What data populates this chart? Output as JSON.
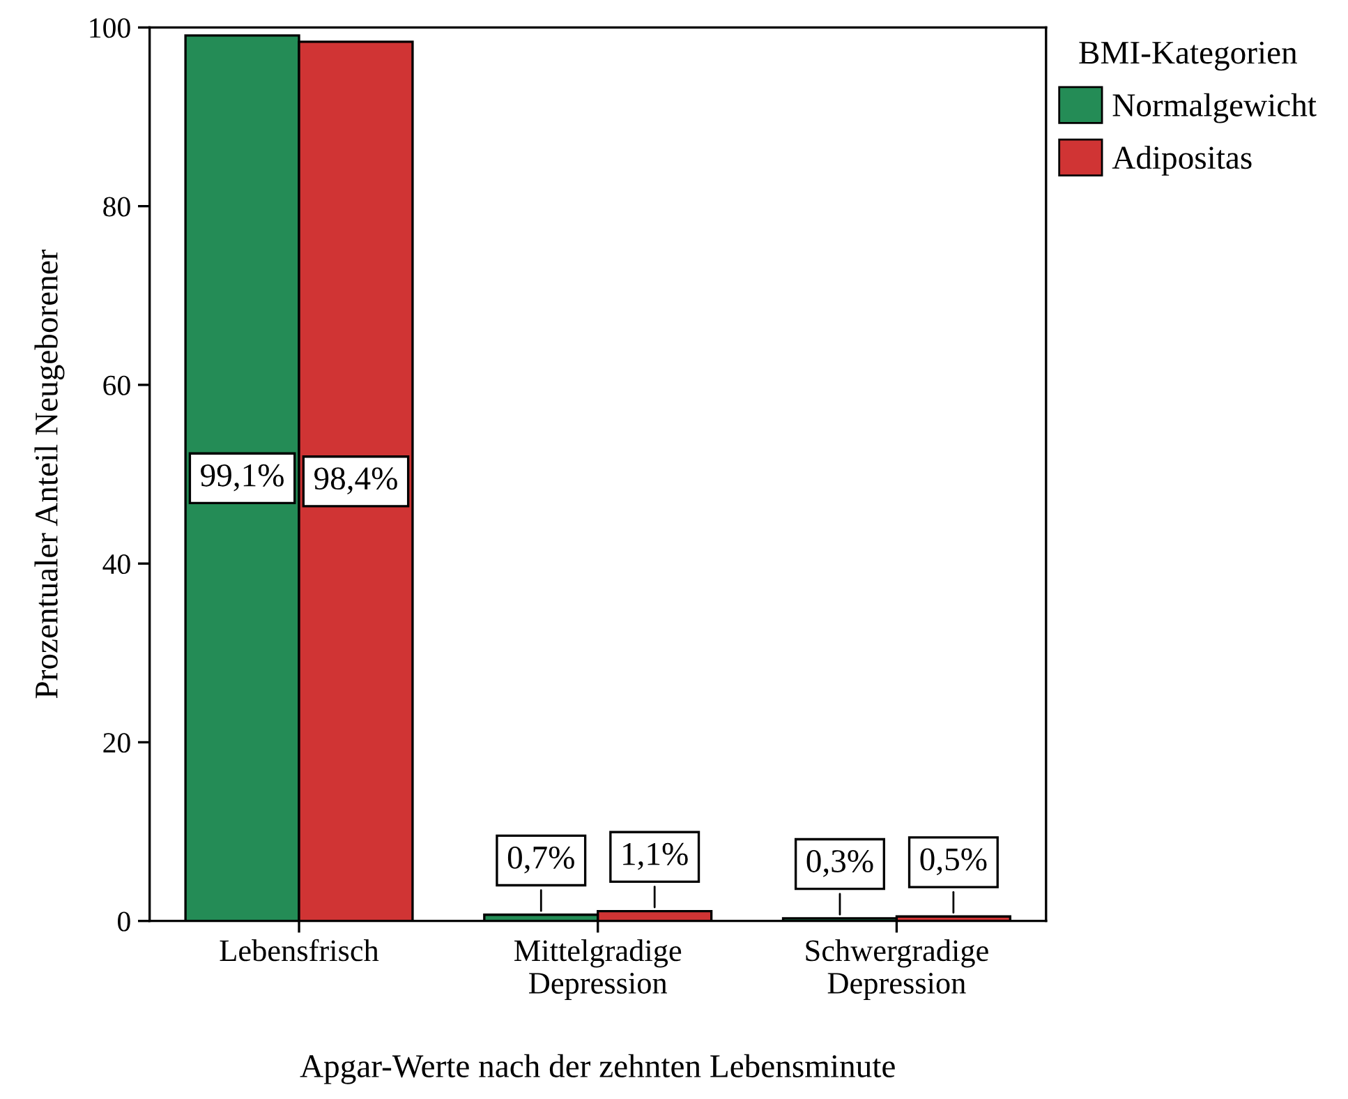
{
  "chart_data": {
    "type": "bar",
    "xlabel": "Apgar-Werte nach der zehnten Lebensminute",
    "ylabel": "Prozentualer Anteil Neugeborener",
    "legend_title": "BMI-Kategorien",
    "legend": "top right",
    "grid": false,
    "categories": [
      "Lebensfrisch",
      "Mittelgradige\nDepression",
      "Schwergradige\nDepression"
    ],
    "series": [
      {
        "name": "Normalgewicht",
        "color": "#248c56",
        "values": [
          99.1,
          0.7,
          0.3
        ],
        "value_labels": [
          "99,1%",
          "0,7%",
          "0,3%"
        ]
      },
      {
        "name": "Adipositas",
        "color": "#d03434",
        "values": [
          98.4,
          1.1,
          0.5
        ],
        "value_labels": [
          "98,4%",
          "1,1%",
          "0,5%"
        ]
      }
    ],
    "ylim": [
      0,
      100
    ],
    "yticks": [
      0,
      20,
      40,
      60,
      80,
      100
    ]
  }
}
